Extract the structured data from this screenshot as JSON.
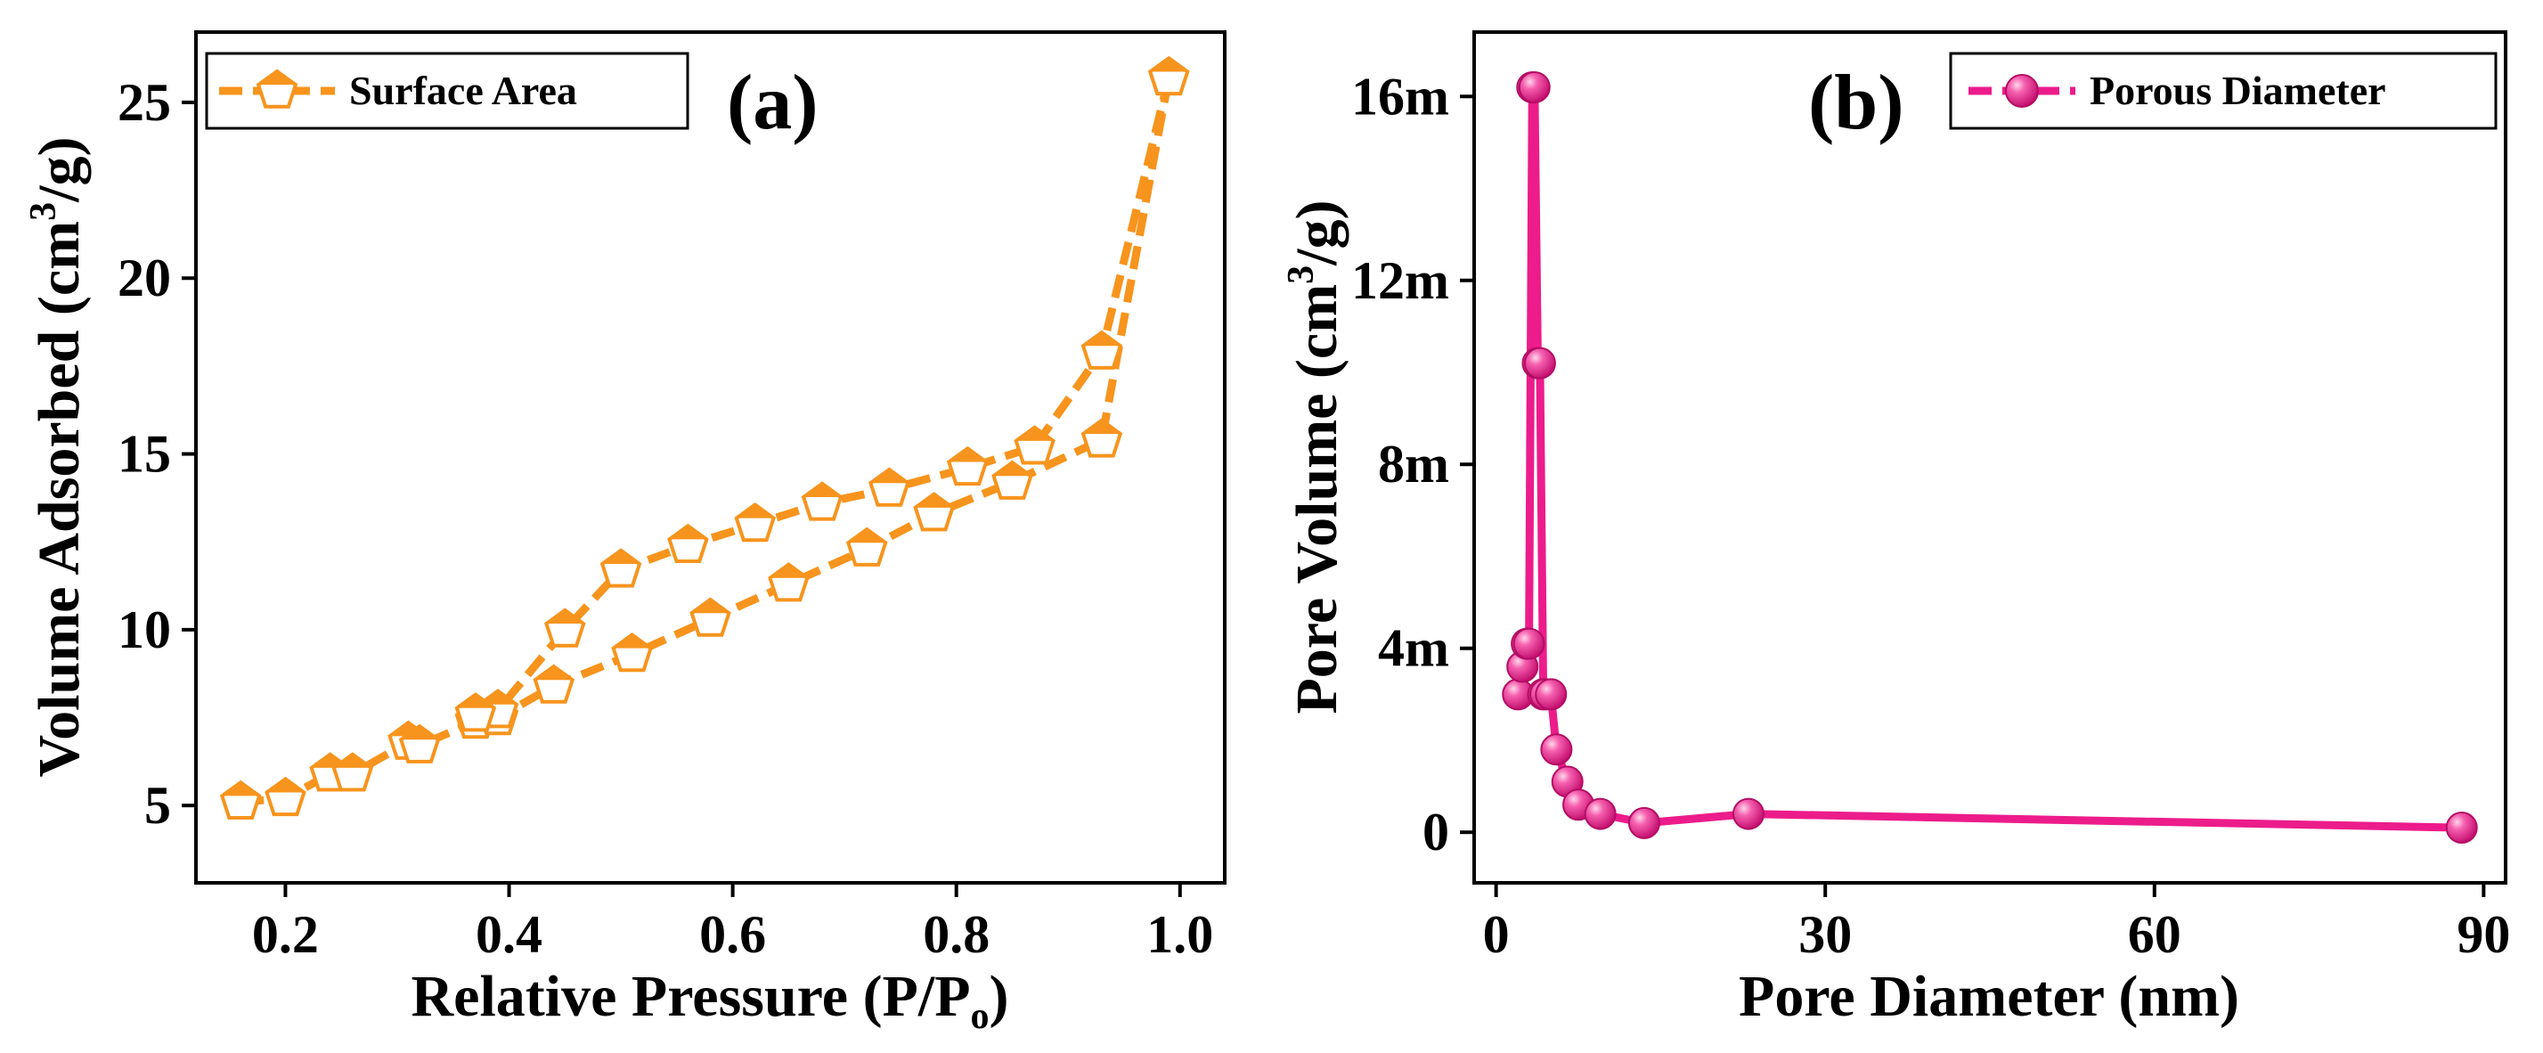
{
  "chart_data": [
    {
      "type": "line",
      "panel_label": "(a)",
      "xlabel": "Relative Pressure (P/P",
      "xlabel_sub": "o",
      "xlabel_close": ")",
      "ylabel": "Volume Adsorbed (cm",
      "ylabel_sup": "3",
      "ylabel_close": "/g)",
      "xlim": [
        0.12,
        1.04
      ],
      "ylim": [
        2.8,
        27.0
      ],
      "xticks": [
        0.2,
        0.4,
        0.6,
        0.8,
        1.0
      ],
      "xtick_labels": [
        "0.2",
        "0.4",
        "0.6",
        "0.8",
        "1.0"
      ],
      "yticks": [
        5,
        10,
        15,
        20,
        25
      ],
      "ytick_labels": [
        "5",
        "10",
        "15",
        "20",
        "25"
      ],
      "legend_position": "top-left",
      "series": [
        {
          "name": "Surface Area",
          "color": "#f7941d",
          "marker": "pentagon",
          "adsorption": {
            "x": [
              0.16,
              0.2,
              0.24,
              0.26,
              0.31,
              0.32,
              0.37,
              0.39,
              0.44,
              0.51,
              0.58,
              0.65,
              0.72,
              0.78,
              0.85,
              0.93,
              0.99
            ],
            "y": [
              5.1,
              5.2,
              5.9,
              5.9,
              6.8,
              6.7,
              7.4,
              7.5,
              8.4,
              9.3,
              10.3,
              11.3,
              12.3,
              13.3,
              14.2,
              15.4,
              25.7
            ]
          },
          "desorption": {
            "x": [
              0.99,
              0.93,
              0.87,
              0.81,
              0.74,
              0.68,
              0.62,
              0.56,
              0.5,
              0.45,
              0.39,
              0.37
            ],
            "y": [
              25.7,
              17.9,
              15.2,
              14.6,
              14.0,
              13.6,
              13.0,
              12.4,
              11.7,
              10.0,
              7.7,
              7.6
            ]
          }
        }
      ]
    },
    {
      "type": "line",
      "panel_label": "(b)",
      "xlabel": "Pore Diameter (nm)",
      "ylabel": "Pore Volume (cm",
      "ylabel_sup": "3",
      "ylabel_close": "/g)",
      "xlim": [
        -2,
        92
      ],
      "ylim": [
        -0.0011,
        0.0174
      ],
      "xticks": [
        0,
        30,
        60,
        90
      ],
      "xtick_labels": [
        "0",
        "30",
        "60",
        "90"
      ],
      "yticks": [
        0,
        0.004,
        0.008,
        0.012,
        0.016
      ],
      "ytick_labels": [
        "0",
        "4m",
        "8m",
        "12m",
        "16m"
      ],
      "legend_position": "top-right",
      "series": [
        {
          "name": "Porous Diameter",
          "color": "#ec1c8b",
          "marker": "sphere",
          "x": [
            2.0,
            2.4,
            2.8,
            3.0,
            3.3,
            3.5,
            3.8,
            4.0,
            4.3,
            4.5,
            5.0,
            5.5,
            6.5,
            7.5,
            9.5,
            13.5,
            23.0,
            88.0
          ],
          "y": [
            0.003,
            0.0036,
            0.0041,
            0.0041,
            0.0162,
            0.0162,
            0.0102,
            0.0102,
            0.003,
            0.003,
            0.003,
            0.0018,
            0.0011,
            0.0006,
            0.0004,
            0.0002,
            0.0004,
            0.0001
          ]
        }
      ]
    }
  ]
}
